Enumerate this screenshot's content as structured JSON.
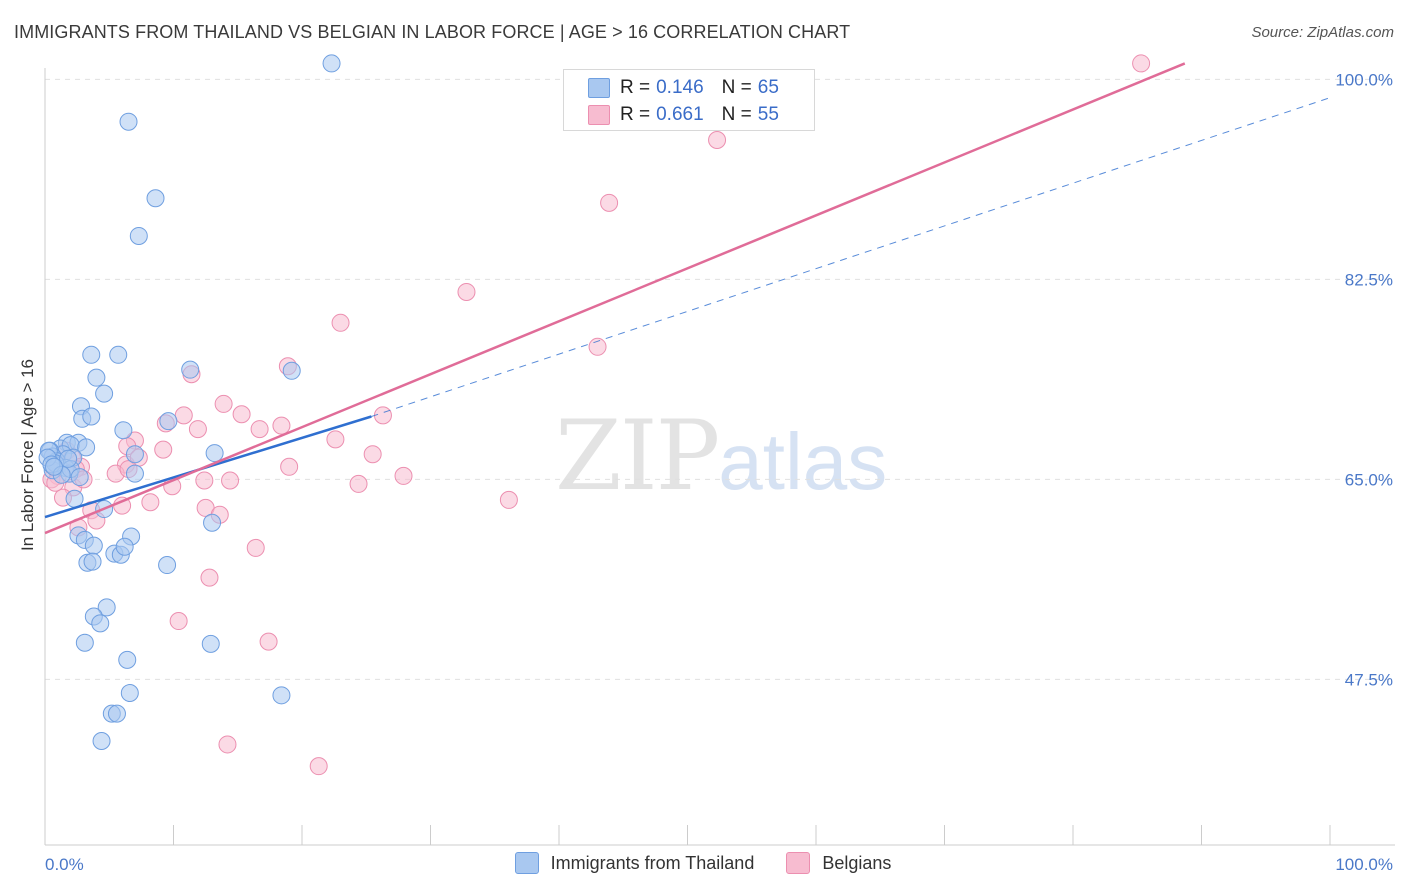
{
  "title": "IMMIGRANTS FROM THAILAND VS BELGIAN IN LABOR FORCE | AGE > 16 CORRELATION CHART",
  "source": "Source: ZipAtlas.com",
  "watermark": {
    "zip": "ZIP",
    "atlas": "atlas"
  },
  "legend": {
    "rows": [
      {
        "r_label": "R =",
        "r_value": "0.146",
        "n_label": "N =",
        "n_value": "65",
        "color": "#a9c8f0"
      },
      {
        "r_label": "R =",
        "r_value": "0.661",
        "n_label": "N =",
        "n_value": "55",
        "color": "#f7bcd0"
      }
    ]
  },
  "bottom_legend": [
    "Immigrants from Thailand",
    "Belgians"
  ],
  "colors": {
    "blue_fill": "#a9c8f0",
    "blue_stroke": "#6f9fe0",
    "blue_line": "#2f6fd0",
    "pink_fill": "#f7bcd0",
    "pink_stroke": "#ec8fb0",
    "pink_line": "#e06c98",
    "axis_text": "#4a78c8",
    "grid": "#e0e0e0"
  },
  "chart_data": {
    "type": "scatter",
    "title": "IMMIGRANTS FROM THAILAND VS BELGIAN IN LABOR FORCE | AGE > 16 CORRELATION CHART",
    "xlabel": "",
    "ylabel": "In Labor Force | Age > 16",
    "xlim": [
      0,
      100
    ],
    "ylim": [
      33.0,
      101.7
    ],
    "x_tick_labels": [
      "0.0%",
      "100.0%"
    ],
    "y_ticks": [
      47.5,
      65.0,
      82.5,
      100.0
    ],
    "y_tick_labels": [
      "47.5%",
      "65.0%",
      "82.5%",
      "100.0%"
    ],
    "grid": true,
    "legend_position": "top-center",
    "series": [
      {
        "name": "Immigrants from Thailand",
        "r": 0.146,
        "n": 65,
        "trend": {
          "x": [
            0,
            25.4
          ],
          "y": [
            61.7,
            70.5
          ],
          "dashed_extension": {
            "x": [
              25.4,
              100
            ],
            "y": [
              70.5,
              98.4
            ]
          }
        },
        "points": [
          [
            22.3,
            101.4
          ],
          [
            6.5,
            96.3
          ],
          [
            8.6,
            89.6
          ],
          [
            7.3,
            86.3
          ],
          [
            3.6,
            75.9
          ],
          [
            5.7,
            75.9
          ],
          [
            11.3,
            74.6
          ],
          [
            19.2,
            74.5
          ],
          [
            4.0,
            73.9
          ],
          [
            4.6,
            72.5
          ],
          [
            2.8,
            71.4
          ],
          [
            2.9,
            70.3
          ],
          [
            3.6,
            70.5
          ],
          [
            9.6,
            70.1
          ],
          [
            1.7,
            68.2
          ],
          [
            2.6,
            68.2
          ],
          [
            6.1,
            69.3
          ],
          [
            1.2,
            67.7
          ],
          [
            2.0,
            68.0
          ],
          [
            3.2,
            67.8
          ],
          [
            1.4,
            67.2
          ],
          [
            2.2,
            66.9
          ],
          [
            0.4,
            67.5
          ],
          [
            0.6,
            67.0
          ],
          [
            0.9,
            66.6
          ],
          [
            1.0,
            66.2
          ],
          [
            1.6,
            66.0
          ],
          [
            0.6,
            65.8
          ],
          [
            1.9,
            65.5
          ],
          [
            2.0,
            65.9
          ],
          [
            0.8,
            66.4
          ],
          [
            7.0,
            67.2
          ],
          [
            0.3,
            67.5
          ],
          [
            0.2,
            66.9
          ],
          [
            7.0,
            65.5
          ],
          [
            13.2,
            67.3
          ],
          [
            2.3,
            63.3
          ],
          [
            4.6,
            62.4
          ],
          [
            13.0,
            61.2
          ],
          [
            2.6,
            60.1
          ],
          [
            3.1,
            59.7
          ],
          [
            6.7,
            60.0
          ],
          [
            3.8,
            59.2
          ],
          [
            5.4,
            58.5
          ],
          [
            5.9,
            58.4
          ],
          [
            6.2,
            59.1
          ],
          [
            3.3,
            57.7
          ],
          [
            3.7,
            57.8
          ],
          [
            9.5,
            57.5
          ],
          [
            4.8,
            53.8
          ],
          [
            3.8,
            53.0
          ],
          [
            4.3,
            52.4
          ],
          [
            3.1,
            50.7
          ],
          [
            12.9,
            50.6
          ],
          [
            6.4,
            49.2
          ],
          [
            6.6,
            46.3
          ],
          [
            18.4,
            46.1
          ],
          [
            5.2,
            44.5
          ],
          [
            5.6,
            44.5
          ],
          [
            4.4,
            42.1
          ],
          [
            0.5,
            66.3
          ],
          [
            1.3,
            65.4
          ],
          [
            2.7,
            65.2
          ],
          [
            1.8,
            66.8
          ],
          [
            0.7,
            66.1
          ]
        ]
      },
      {
        "name": "Belgians",
        "r": 0.661,
        "n": 55,
        "trend": {
          "x": [
            0,
            88.7
          ],
          "y": [
            60.3,
            101.4
          ]
        },
        "points": [
          [
            85.3,
            101.4
          ],
          [
            52.3,
            94.7
          ],
          [
            43.9,
            89.2
          ],
          [
            32.8,
            81.4
          ],
          [
            23.0,
            78.7
          ],
          [
            43.0,
            76.6
          ],
          [
            18.9,
            74.9
          ],
          [
            11.4,
            74.2
          ],
          [
            13.9,
            71.6
          ],
          [
            10.8,
            70.6
          ],
          [
            11.9,
            69.4
          ],
          [
            15.3,
            70.7
          ],
          [
            9.4,
            69.9
          ],
          [
            18.4,
            69.7
          ],
          [
            16.7,
            69.4
          ],
          [
            26.3,
            70.6
          ],
          [
            7.0,
            68.4
          ],
          [
            6.4,
            67.9
          ],
          [
            22.6,
            68.5
          ],
          [
            9.2,
            67.6
          ],
          [
            6.3,
            66.3
          ],
          [
            7.3,
            66.9
          ],
          [
            25.5,
            67.2
          ],
          [
            1.7,
            67.5
          ],
          [
            2.1,
            66.9
          ],
          [
            2.8,
            66.1
          ],
          [
            2.4,
            65.9
          ],
          [
            1.0,
            65.3
          ],
          [
            0.5,
            65.0
          ],
          [
            5.5,
            65.5
          ],
          [
            6.5,
            65.9
          ],
          [
            19.0,
            66.1
          ],
          [
            14.4,
            64.9
          ],
          [
            27.9,
            65.3
          ],
          [
            9.9,
            64.4
          ],
          [
            12.4,
            64.9
          ],
          [
            24.4,
            64.6
          ],
          [
            36.1,
            63.2
          ],
          [
            2.2,
            64.3
          ],
          [
            1.4,
            63.4
          ],
          [
            8.2,
            63.0
          ],
          [
            6.0,
            62.7
          ],
          [
            3.6,
            62.3
          ],
          [
            4.0,
            61.4
          ],
          [
            12.5,
            62.5
          ],
          [
            13.6,
            61.9
          ],
          [
            2.6,
            60.8
          ],
          [
            16.4,
            59.0
          ],
          [
            12.8,
            56.4
          ],
          [
            10.4,
            52.6
          ],
          [
            17.4,
            50.8
          ],
          [
            14.2,
            41.8
          ],
          [
            21.3,
            39.9
          ],
          [
            3.0,
            65.0
          ],
          [
            0.8,
            64.7
          ]
        ]
      }
    ]
  }
}
